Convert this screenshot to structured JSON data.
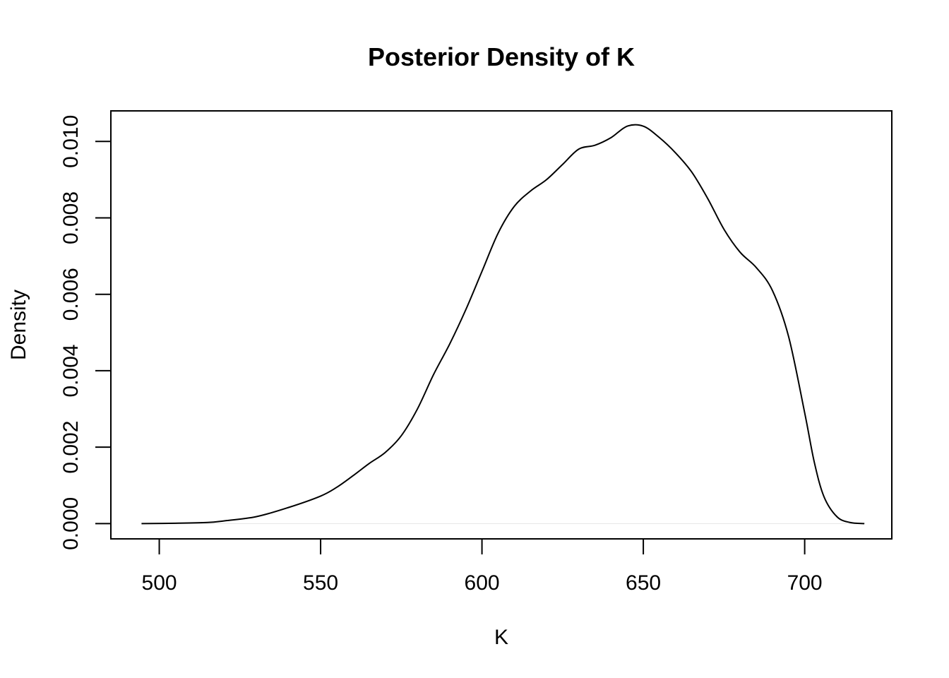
{
  "chart_data": {
    "type": "line",
    "title": "Posterior Density of K",
    "xlabel": "K",
    "ylabel": "Density",
    "xlim": [
      485,
      727
    ],
    "ylim": [
      -0.0004,
      0.0108
    ],
    "x_ticks": [
      500,
      550,
      600,
      650,
      700
    ],
    "x_tick_labels": [
      "500",
      "550",
      "600",
      "650",
      "700"
    ],
    "y_ticks": [
      0.0,
      0.002,
      0.004,
      0.006,
      0.008,
      0.01
    ],
    "y_tick_labels": [
      "0.000",
      "0.002",
      "0.004",
      "0.006",
      "0.008",
      "0.010"
    ],
    "grid": false,
    "baseline": 0,
    "colors": {
      "line": "#000000",
      "baseline": "#e6e6e6",
      "frame": "#000000"
    },
    "series": [
      {
        "x": [
          494.5,
          505,
          515,
          520,
          530,
          540,
          550,
          555,
          560,
          565,
          570,
          575,
          580,
          585,
          590,
          595,
          600,
          605,
          610,
          615,
          620,
          625,
          630,
          635,
          640,
          645,
          650,
          655,
          660,
          665,
          670,
          675,
          680,
          685,
          690,
          695,
          700,
          703,
          706,
          710,
          714,
          718.5
        ],
        "y": [
          0.0,
          1e-05,
          3e-05,
          7e-05,
          0.00018,
          0.00042,
          0.00072,
          0.00095,
          0.00125,
          0.00157,
          0.00186,
          0.0023,
          0.003,
          0.0039,
          0.0047,
          0.0056,
          0.0066,
          0.0076,
          0.0083,
          0.0087,
          0.009,
          0.0094,
          0.0098,
          0.0099,
          0.0101,
          0.0104,
          0.0104,
          0.0101,
          0.0097,
          0.0092,
          0.0085,
          0.0077,
          0.0071,
          0.0067,
          0.0061,
          0.0049,
          0.0029,
          0.0016,
          0.0007,
          0.00018,
          3e-05,
          0.0
        ]
      }
    ]
  }
}
